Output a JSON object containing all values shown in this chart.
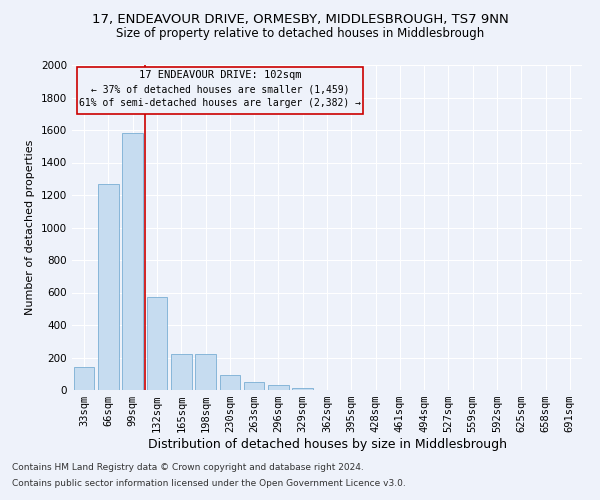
{
  "title_line1": "17, ENDEAVOUR DRIVE, ORMESBY, MIDDLESBROUGH, TS7 9NN",
  "title_line2": "Size of property relative to detached houses in Middlesbrough",
  "xlabel": "Distribution of detached houses by size in Middlesbrough",
  "ylabel": "Number of detached properties",
  "footer_line1": "Contains HM Land Registry data © Crown copyright and database right 2024.",
  "footer_line2": "Contains public sector information licensed under the Open Government Licence v3.0.",
  "annotation_line1": "17 ENDEAVOUR DRIVE: 102sqm",
  "annotation_line2": "← 37% of detached houses are smaller (1,459)",
  "annotation_line3": "61% of semi-detached houses are larger (2,382) →",
  "bar_color": "#c6dcf0",
  "bar_edge_color": "#7aafd4",
  "vline_color": "#cc0000",
  "vline_x_idx": 2,
  "categories": [
    "33sqm",
    "66sqm",
    "99sqm",
    "132sqm",
    "165sqm",
    "198sqm",
    "230sqm",
    "263sqm",
    "296sqm",
    "329sqm",
    "362sqm",
    "395sqm",
    "428sqm",
    "461sqm",
    "494sqm",
    "527sqm",
    "559sqm",
    "592sqm",
    "625sqm",
    "658sqm",
    "691sqm"
  ],
  "values": [
    140,
    1270,
    1580,
    570,
    220,
    220,
    95,
    50,
    28,
    15,
    0,
    0,
    0,
    0,
    0,
    0,
    0,
    0,
    0,
    0,
    0
  ],
  "ylim": [
    0,
    2000
  ],
  "yticks": [
    0,
    200,
    400,
    600,
    800,
    1000,
    1200,
    1400,
    1600,
    1800,
    2000
  ],
  "background_color": "#eef2fa",
  "plot_bg_color": "#eef2fa",
  "grid_color": "#ffffff",
  "title_fontsize": 9.5,
  "subtitle_fontsize": 8.5,
  "xlabel_fontsize": 9,
  "ylabel_fontsize": 8,
  "tick_fontsize": 7.5,
  "footer_fontsize": 6.5
}
